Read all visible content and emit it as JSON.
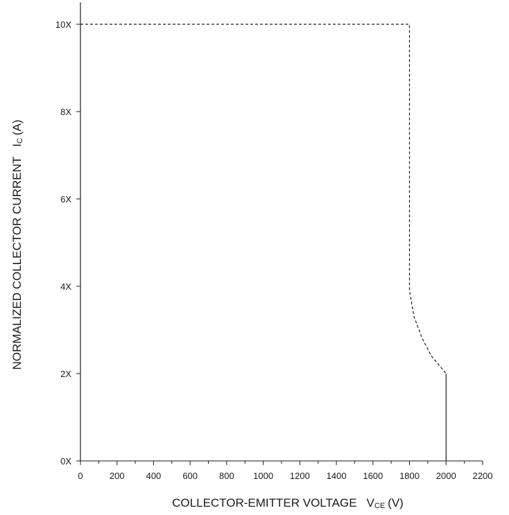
{
  "chart_data": {
    "type": "line",
    "title": "",
    "xlabel": {
      "main": "COLLECTOR-EMITTER VOLTAGE",
      "symbol": "V",
      "subscript": "CE",
      "unit": "(V)"
    },
    "ylabel": {
      "main": "NORMALIZED COLLECTOR CURRENT",
      "symbol": "I",
      "subscript": "C",
      "unit": "(A)"
    },
    "xlim": [
      0,
      2200
    ],
    "ylim": [
      0,
      10
    ],
    "x_ticks": [
      0,
      200,
      400,
      600,
      800,
      1000,
      1200,
      1400,
      1600,
      1800,
      2000,
      2200
    ],
    "x_tick_labels": [
      "0",
      "200",
      "400",
      "600",
      "800",
      "1000",
      "1200",
      "1400",
      "1600",
      "1800",
      "2000",
      "2200"
    ],
    "x_minor_step": 100,
    "y_ticks": [
      0,
      2,
      4,
      6,
      8,
      10
    ],
    "y_tick_labels": [
      "0X",
      "2X",
      "4X",
      "6X",
      "8X",
      "10X"
    ],
    "grid": false,
    "series": [
      {
        "style": "solid",
        "points": [
          [
            0,
            0
          ],
          [
            0,
            10.5
          ]
        ]
      },
      {
        "style": "dashed",
        "points": [
          [
            0,
            10
          ],
          [
            1800,
            10
          ],
          [
            1800,
            3.9
          ],
          [
            1825,
            3.3
          ],
          [
            1870,
            2.8
          ],
          [
            1920,
            2.4
          ],
          [
            1970,
            2.15
          ],
          [
            2000,
            2
          ]
        ]
      },
      {
        "style": "solid",
        "points": [
          [
            2000,
            2
          ],
          [
            2000,
            0
          ]
        ]
      }
    ]
  }
}
